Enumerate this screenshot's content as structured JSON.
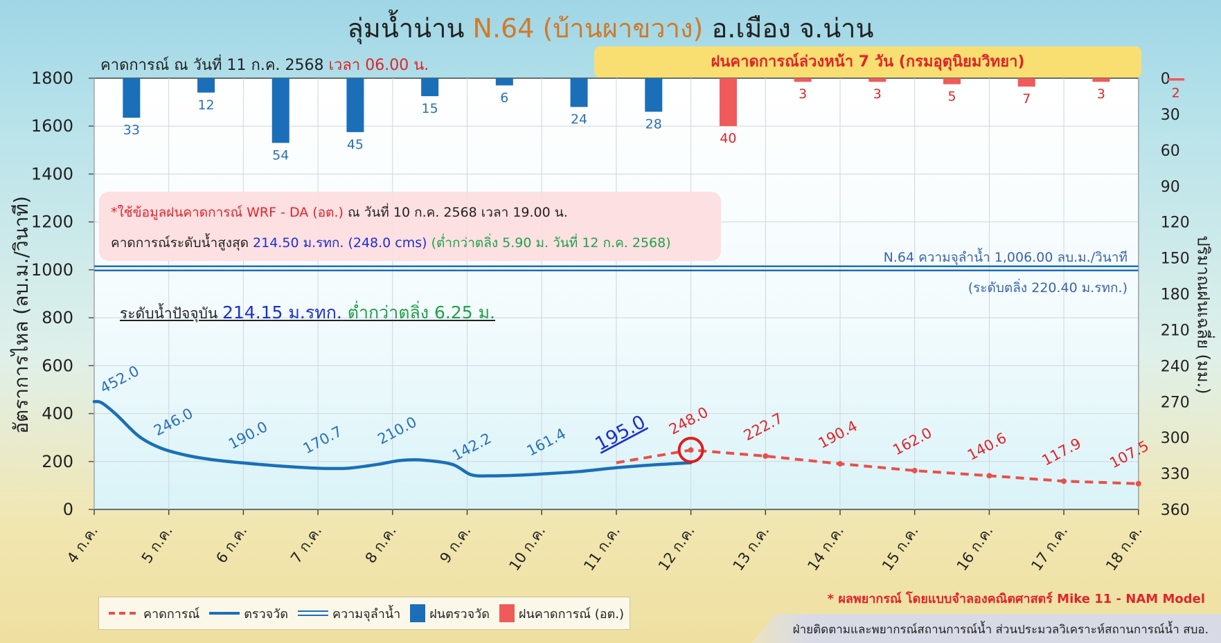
{
  "header": {
    "title_a": "ลุ่มน้ำน่าน ",
    "title_station": "N.64 (บ้านผาขวาง)",
    "title_b": " อ.เมือง จ.น่าน",
    "forecast_date": "คาดการณ์ ณ วันที่ 11 ก.ค. 2568 ",
    "forecast_time": "เวลา 06.00 น.",
    "rain_banner": "ฝนคาดการณ์ล่วงหน้า 7 วัน (กรมอุตุนิยมวิทยา)"
  },
  "info": {
    "line1_red": "*ใช้ข้อมูลฝนคาดการณ์ WRF - DA (อต.)",
    "line1_rest": " ณ วันที่ 10 ก.ค. 2568 เวลา 19.00 น.",
    "line2_a": "คาดการณ์ระดับน้ำสูงสุด ",
    "line2_blue": "214.50 ม.รทก. (248.0 cms)",
    "line2_green": " (ต่ำกว่าตลิ่ง 5.90 ม. วันที่ 12 ก.ค. 2568)",
    "current_a": "ระดับน้ำปัจจุบัน ",
    "current_blue": "214.15 ม.รทก.",
    "current_green": " ต่ำกว่าตลิ่ง 6.25 ม.",
    "capacity": "N.64 ความจุลำน้ำ 1,006.00 ลบ.ม./วินาที",
    "bank_level": "(ระดับตลิ่ง 220.40 ม.รทก.)"
  },
  "legend": {
    "forecast": "คาดการณ์",
    "observed": "ตรวจวัด",
    "capacity": "ความจุลำน้ำ",
    "rain_observed": "ฝนตรวจวัด",
    "rain_forecast": "ฝนคาดการณ์ (อต.)"
  },
  "notes": {
    "model": "* ผลพยากรณ์ โดยแบบจำลองคณิตศาสตร์ Mike 11 - NAM Model",
    "footer": "ฝ่ายติดตามและพยากรณ์สถานการณ์น้ำ ส่วนประมวลวิเคราะห์สถานการณ์น้ำ สบอ."
  },
  "colors": {
    "observed": "#1a6fb8",
    "forecast": "#e8504a",
    "rain_observed": "#1a6fb8",
    "rain_forecast": "#f05a5a",
    "capacity": "#1a6fb8",
    "forecast_label": "#e0242a"
  },
  "chart_data": {
    "type": "line",
    "x_categories": [
      "4 ก.ค.",
      "5 ก.ค.",
      "6 ก.ค.",
      "7 ก.ค.",
      "8 ก.ค.",
      "9 ก.ค.",
      "10 ก.ค.",
      "11 ก.ค.",
      "12 ก.ค.",
      "13 ก.ค.",
      "14 ก.ค.",
      "15 ก.ค.",
      "16 ก.ค.",
      "17 ก.ค.",
      "18 ก.ค."
    ],
    "ylabel": "อัตราการไหล (ลบ.ม./วินาที)",
    "ylim": [
      0,
      1800
    ],
    "yticks": [
      0,
      200,
      400,
      600,
      800,
      1000,
      1200,
      1400,
      1600,
      1800
    ],
    "y2label": "ปริมาณฝนเฉลี่ย (มม.)",
    "y2lim": [
      0,
      360
    ],
    "y2ticks": [
      0,
      30,
      60,
      90,
      120,
      150,
      180,
      210,
      240,
      270,
      300,
      330,
      360
    ],
    "y2_inverted": true,
    "capacity_line": 1006,
    "observed_curve": [
      [
        0,
        450
      ],
      [
        0.1,
        445
      ],
      [
        0.3,
        395
      ],
      [
        0.6,
        305
      ],
      [
        0.9,
        255
      ],
      [
        1.25,
        225
      ],
      [
        1.6,
        207
      ],
      [
        2,
        194
      ],
      [
        2.5,
        181
      ],
      [
        3,
        172
      ],
      [
        3.4,
        172
      ],
      [
        3.8,
        188
      ],
      [
        4.1,
        204
      ],
      [
        4.4,
        206
      ],
      [
        4.8,
        188
      ],
      [
        5.05,
        145
      ],
      [
        5.3,
        140
      ],
      [
        5.7,
        143
      ],
      [
        6,
        148
      ],
      [
        6.5,
        158
      ],
      [
        7,
        174
      ],
      [
        7.5,
        186
      ],
      [
        8,
        195
      ]
    ],
    "series": [
      {
        "name": "ตรวจวัด",
        "x_index": [
          0,
          1,
          2,
          3,
          4,
          5,
          6,
          7
        ],
        "values": [
          452.0,
          246.0,
          190.0,
          170.7,
          210.0,
          142.2,
          161.4,
          195.0
        ],
        "labels": [
          "452.0",
          "246.0",
          "190.0",
          "170.7",
          "210.0",
          "142.2",
          "161.4",
          "195.0"
        ]
      },
      {
        "name": "คาดการณ์",
        "x_index": [
          8,
          9,
          10,
          11,
          12,
          13,
          14
        ],
        "values": [
          248.0,
          222.7,
          190.4,
          162.0,
          140.6,
          117.9,
          107.5
        ],
        "labels": [
          "248.0",
          "222.7",
          "190.4",
          "162.0",
          "140.6",
          "117.9",
          "107.5"
        ]
      }
    ],
    "rain_observed": {
      "name": "ฝนตรวจวัด",
      "values": [
        33,
        12,
        54,
        45,
        15,
        6,
        24,
        28
      ],
      "labels": [
        "33",
        "12",
        "54",
        "45",
        "15",
        "6",
        "24",
        "28"
      ]
    },
    "rain_forecast": {
      "name": "ฝนคาดการณ์ (อต.)",
      "values": [
        40,
        3,
        3,
        5,
        7,
        3,
        2
      ],
      "labels": [
        "40",
        "3",
        "3",
        "5",
        "7",
        "3",
        "2"
      ]
    },
    "peak_marker_index": 9
  }
}
